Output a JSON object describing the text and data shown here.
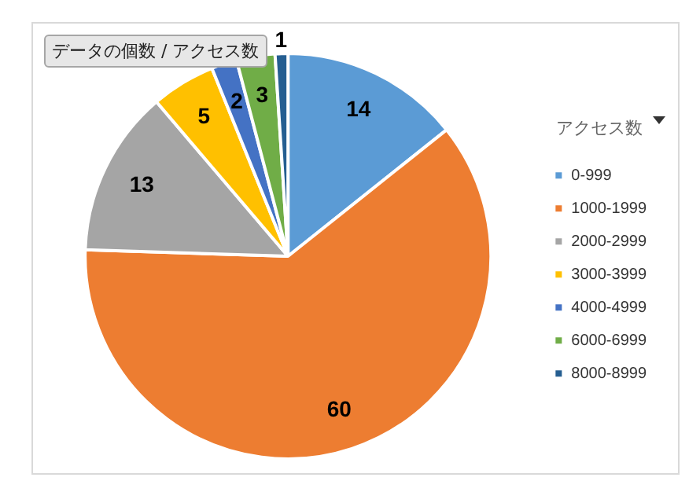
{
  "chart_data": {
    "type": "pie",
    "title": "データの個数 / アクセス数",
    "legend_title": "アクセス数",
    "categories": [
      "0-999",
      "1000-1999",
      "2000-2999",
      "3000-3999",
      "4000-4999",
      "6000-6999",
      "8000-8999"
    ],
    "values": [
      14,
      60,
      13,
      5,
      2,
      3,
      1
    ],
    "colors": [
      "#5b9bd5",
      "#ed7d31",
      "#a5a5a5",
      "#ffc000",
      "#4472c4",
      "#70ad47",
      "#255e91"
    ],
    "data_labels": true,
    "legend": "right"
  }
}
